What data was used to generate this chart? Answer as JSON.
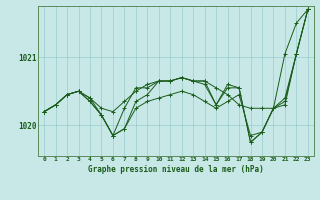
{
  "title": "Graphe pression niveau de la mer (hPa)",
  "ytick_labels": [
    "1020",
    "1021"
  ],
  "yticks": [
    1020,
    1021
  ],
  "ylim": [
    1019.55,
    1021.75
  ],
  "xlim": [
    -0.5,
    23.5
  ],
  "bg_color": "#c8e8e8",
  "grid_color": "#99cccc",
  "line_color": "#1a5c1a",
  "spine_color": "#5a8a5a",
  "series": [
    [
      1020.2,
      1020.3,
      1020.45,
      1020.5,
      1020.4,
      1020.25,
      1020.2,
      1020.35,
      1020.5,
      1020.6,
      1020.65,
      1020.65,
      1020.7,
      1020.65,
      1020.65,
      1020.55,
      1020.45,
      1020.3,
      1020.25,
      1020.25,
      1020.25,
      1021.05,
      1021.5,
      1021.7
    ],
    [
      1020.2,
      1020.3,
      1020.45,
      1020.5,
      1020.35,
      1020.15,
      1019.85,
      1019.95,
      1020.25,
      1020.35,
      1020.4,
      1020.45,
      1020.5,
      1020.45,
      1020.35,
      1020.25,
      1020.35,
      1020.45,
      1019.85,
      1019.9,
      1020.25,
      1020.3,
      1021.05,
      1021.7
    ],
    [
      1020.2,
      1020.3,
      1020.45,
      1020.5,
      1020.4,
      1020.15,
      1019.85,
      1020.25,
      1020.55,
      1020.55,
      1020.65,
      1020.65,
      1020.7,
      1020.65,
      1020.6,
      1020.3,
      1020.55,
      1020.55,
      1019.75,
      1019.9,
      1020.25,
      1020.4,
      1021.05,
      1021.7
    ],
    [
      1020.2,
      1020.3,
      1020.45,
      1020.5,
      1020.35,
      1020.15,
      1019.85,
      1019.95,
      1020.35,
      1020.45,
      1020.65,
      1020.65,
      1020.7,
      1020.65,
      1020.65,
      1020.3,
      1020.6,
      1020.55,
      1019.75,
      1019.9,
      1020.25,
      1020.35,
      1021.05,
      1021.7
    ]
  ]
}
